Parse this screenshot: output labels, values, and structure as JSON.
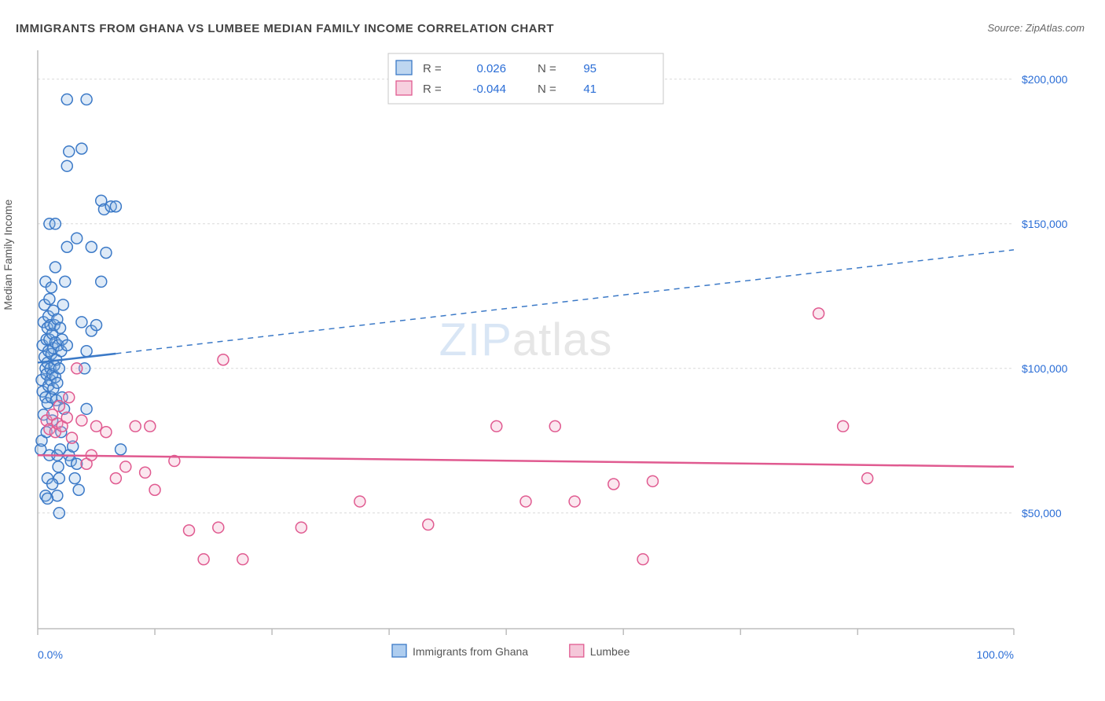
{
  "title": "IMMIGRANTS FROM GHANA VS LUMBEE MEDIAN FAMILY INCOME CORRELATION CHART",
  "source": "Source: ZipAtlas.com",
  "ylabel": "Median Family Income",
  "watermark": {
    "part1": "ZIP",
    "part2": "atlas"
  },
  "chart": {
    "type": "scatter",
    "background_color": "#ffffff",
    "grid_color": "#d9d9d9",
    "axis_color": "#bdbdbd",
    "text_color": "#555555",
    "value_color": "#2a6dd6",
    "xlim": [
      0,
      100
    ],
    "ylim": [
      10000,
      210000
    ],
    "yticks": [
      50000,
      100000,
      150000,
      200000
    ],
    "ytick_labels": [
      "$50,000",
      "$100,000",
      "$150,000",
      "$200,000"
    ],
    "xticks": [
      0,
      12,
      24,
      36,
      48,
      60,
      72,
      84,
      100
    ],
    "xtick_labels_ends": [
      "0.0%",
      "100.0%"
    ],
    "marker_radius": 7,
    "marker_stroke_width": 1.5,
    "marker_fill_opacity": 0.28
  },
  "series": [
    {
      "name": "Immigrants from Ghana",
      "color_stroke": "#3b79c7",
      "color_fill": "#89b4e4",
      "R": "0.026",
      "N": "95",
      "trend": {
        "y_at_x0": 102000,
        "y_at_x100": 141000,
        "solid_until_x": 8
      },
      "points": [
        [
          0.3,
          72000
        ],
        [
          0.4,
          75000
        ],
        [
          0.4,
          96000
        ],
        [
          0.5,
          108000
        ],
        [
          0.5,
          92000
        ],
        [
          0.6,
          116000
        ],
        [
          0.6,
          84000
        ],
        [
          0.7,
          104000
        ],
        [
          0.7,
          122000
        ],
        [
          0.8,
          100000
        ],
        [
          0.8,
          90000
        ],
        [
          0.8,
          130000
        ],
        [
          0.9,
          110000
        ],
        [
          0.9,
          98000
        ],
        [
          0.9,
          78000
        ],
        [
          1.0,
          114000
        ],
        [
          1.0,
          102000
        ],
        [
          1.0,
          88000
        ],
        [
          1.1,
          118000
        ],
        [
          1.1,
          94000
        ],
        [
          1.1,
          106000
        ],
        [
          1.2,
          124000
        ],
        [
          1.2,
          70000
        ],
        [
          1.2,
          110000
        ],
        [
          1.3,
          100000
        ],
        [
          1.3,
          96000
        ],
        [
          1.3,
          115000
        ],
        [
          1.4,
          105000
        ],
        [
          1.4,
          90000
        ],
        [
          1.4,
          128000
        ],
        [
          1.5,
          112000
        ],
        [
          1.5,
          98000
        ],
        [
          1.5,
          82000
        ],
        [
          1.6,
          120000
        ],
        [
          1.6,
          107000
        ],
        [
          1.6,
          93000
        ],
        [
          1.7,
          115000
        ],
        [
          1.7,
          101000
        ],
        [
          1.8,
          109000
        ],
        [
          1.8,
          97000
        ],
        [
          1.8,
          135000
        ],
        [
          1.9,
          103000
        ],
        [
          1.9,
          89000
        ],
        [
          2.0,
          117000
        ],
        [
          2.0,
          95000
        ],
        [
          2.0,
          70000
        ],
        [
          2.1,
          66000
        ],
        [
          2.1,
          108000
        ],
        [
          2.2,
          62000
        ],
        [
          2.2,
          100000
        ],
        [
          2.3,
          72000
        ],
        [
          2.3,
          114000
        ],
        [
          2.4,
          78000
        ],
        [
          2.4,
          106000
        ],
        [
          2.5,
          110000
        ],
        [
          2.5,
          90000
        ],
        [
          2.6,
          122000
        ],
        [
          2.7,
          86000
        ],
        [
          2.8,
          130000
        ],
        [
          3.0,
          142000
        ],
        [
          3.0,
          108000
        ],
        [
          3.2,
          175000
        ],
        [
          3.2,
          70000
        ],
        [
          3.4,
          68000
        ],
        [
          3.6,
          73000
        ],
        [
          3.8,
          62000
        ],
        [
          4.0,
          145000
        ],
        [
          4.0,
          67000
        ],
        [
          4.2,
          58000
        ],
        [
          4.5,
          116000
        ],
        [
          4.8,
          100000
        ],
        [
          5.0,
          106000
        ],
        [
          5.0,
          86000
        ],
        [
          5.5,
          113000
        ],
        [
          5.5,
          142000
        ],
        [
          6.0,
          115000
        ],
        [
          6.5,
          158000
        ],
        [
          6.5,
          130000
        ],
        [
          6.8,
          155000
        ],
        [
          7.0,
          140000
        ],
        [
          7.5,
          156000
        ],
        [
          8.0,
          156000
        ],
        [
          8.5,
          72000
        ],
        [
          1.0,
          62000
        ],
        [
          1.5,
          60000
        ],
        [
          2.0,
          56000
        ],
        [
          3.0,
          193000
        ],
        [
          5.0,
          193000
        ],
        [
          3.0,
          170000
        ],
        [
          4.5,
          176000
        ],
        [
          1.2,
          150000
        ],
        [
          1.8,
          150000
        ],
        [
          0.8,
          56000
        ],
        [
          1.0,
          55000
        ],
        [
          2.2,
          50000
        ]
      ]
    },
    {
      "name": "Lumbee",
      "color_stroke": "#e05a90",
      "color_fill": "#f1a9c4",
      "R": "-0.044",
      "N": "41",
      "trend": {
        "y_at_x0": 70000,
        "y_at_x100": 66000,
        "solid_until_x": 100
      },
      "points": [
        [
          0.9,
          82000
        ],
        [
          1.2,
          79000
        ],
        [
          1.5,
          84000
        ],
        [
          1.8,
          78000
        ],
        [
          2.0,
          81000
        ],
        [
          2.2,
          87000
        ],
        [
          2.5,
          80000
        ],
        [
          3.0,
          83000
        ],
        [
          3.2,
          90000
        ],
        [
          3.5,
          76000
        ],
        [
          4.0,
          100000
        ],
        [
          4.5,
          82000
        ],
        [
          5.0,
          67000
        ],
        [
          5.5,
          70000
        ],
        [
          6.0,
          80000
        ],
        [
          7.0,
          78000
        ],
        [
          8.0,
          62000
        ],
        [
          9.0,
          66000
        ],
        [
          10.0,
          80000
        ],
        [
          11.0,
          64000
        ],
        [
          12.0,
          58000
        ],
        [
          14.0,
          68000
        ],
        [
          15.5,
          44000
        ],
        [
          17.0,
          34000
        ],
        [
          18.5,
          45000
        ],
        [
          19.0,
          103000
        ],
        [
          21.0,
          34000
        ],
        [
          27.0,
          45000
        ],
        [
          33.0,
          54000
        ],
        [
          40.0,
          46000
        ],
        [
          47.0,
          80000
        ],
        [
          50.0,
          54000
        ],
        [
          53.0,
          80000
        ],
        [
          55.0,
          54000
        ],
        [
          59.0,
          60000
        ],
        [
          62.0,
          34000
        ],
        [
          63.0,
          61000
        ],
        [
          80.0,
          119000
        ],
        [
          82.5,
          80000
        ],
        [
          85.0,
          62000
        ],
        [
          11.5,
          80000
        ]
      ]
    }
  ],
  "legend": {
    "R_label": "R =",
    "N_label": "N =",
    "bottom": [
      {
        "label": "Immigrants from Ghana",
        "swatch_fill": "#aecdef",
        "swatch_stroke": "#3b79c7"
      },
      {
        "label": "Lumbee",
        "swatch_fill": "#f5c7d9",
        "swatch_stroke": "#e05a90"
      }
    ]
  }
}
